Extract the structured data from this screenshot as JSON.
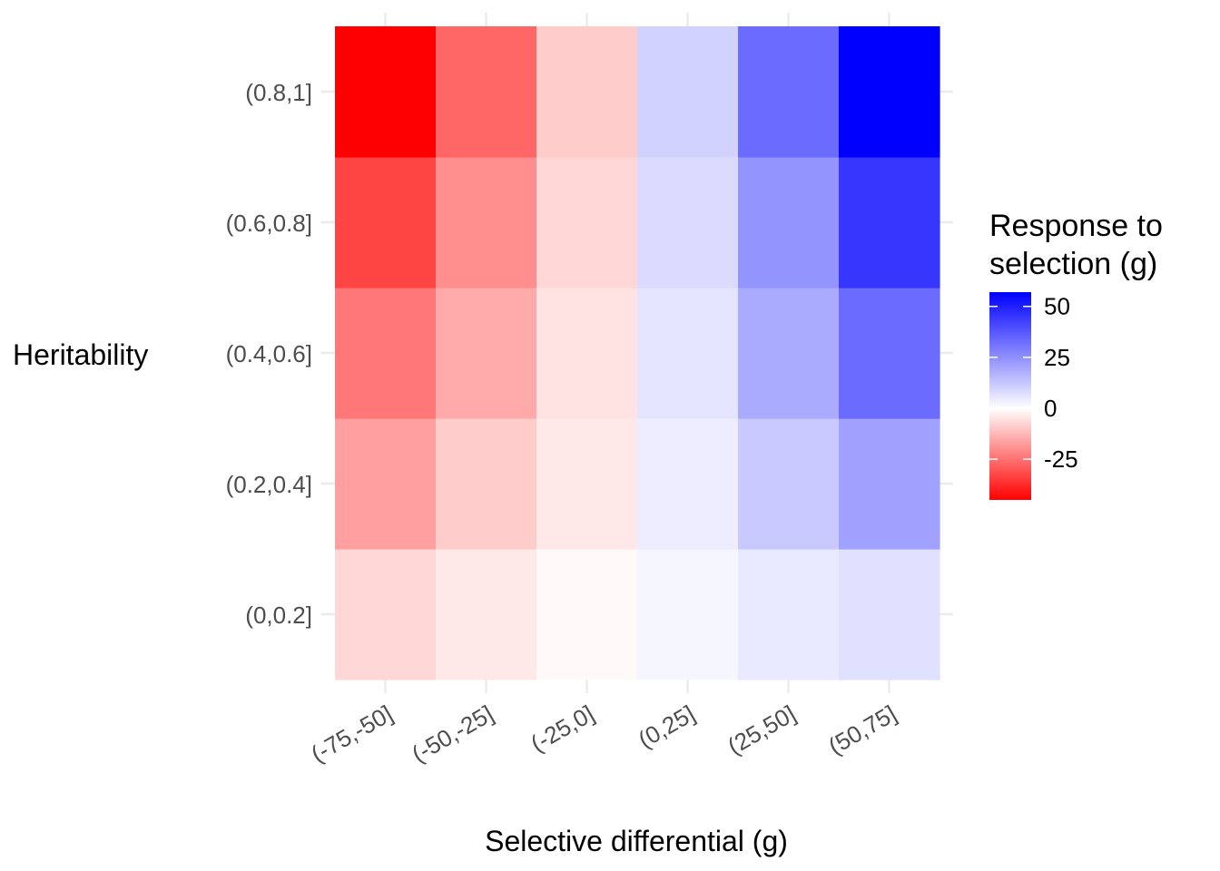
{
  "chart_data": {
    "type": "heatmap",
    "title": "",
    "xlabel": "Selective differential (g)",
    "ylabel": "Heritability",
    "x_categories": [
      "(-75,-50]",
      "(-50,-25]",
      "(-25,0]",
      "(0,25]",
      "(25,50]",
      "(50,75]"
    ],
    "y_categories": [
      "(0,0.2]",
      "(0.2,0.4]",
      "(0.4,0.6]",
      "(0.6,0.8]",
      "(0.8,1]"
    ],
    "values": [
      [
        -7,
        -4,
        -1,
        2,
        5,
        7
      ],
      [
        -17,
        -9,
        -4,
        4,
        12,
        21
      ],
      [
        -24,
        -15,
        -5,
        6,
        19,
        33
      ],
      [
        -33,
        -20,
        -7,
        8,
        24,
        45
      ],
      [
        -45,
        -27,
        -9,
        10,
        33,
        57
      ]
    ],
    "grid": true,
    "legend": {
      "title_line1": "Response to",
      "title_line2": "selection (g)",
      "position": "right",
      "min": -45,
      "max": 57,
      "ticks": [
        50,
        25,
        0,
        -25
      ],
      "tick_labels": [
        "50",
        "25",
        "0",
        "-25"
      ],
      "low_color": "#ff0000",
      "mid_color": "#ffffff",
      "high_color": "#0000ff"
    }
  }
}
